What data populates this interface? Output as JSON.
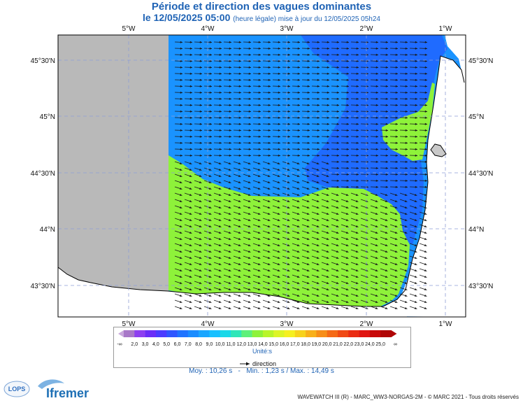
{
  "title": {
    "line1": "Période et direction des vagues dominantes",
    "date": "le 12/05/2025 05:00",
    "updated": "(heure légale) mise à jour du 12/05/2025 05h24"
  },
  "map": {
    "lon_ticks": [
      "5°W",
      "4°W",
      "3°W",
      "2°W",
      "1°W"
    ],
    "lat_ticks": [
      "45°30'N",
      "45°N",
      "44°30'N",
      "44°N",
      "43°30'N"
    ],
    "colors": {
      "land": "#ffffff",
      "mask": "#b9b9b9",
      "blue_dark": "#1f6bff",
      "blue": "#1a93ff",
      "green": "#8ef23a",
      "grid": "#8f9fd6"
    }
  },
  "legend": {
    "labels": [
      "2,0",
      "3,0",
      "4,0",
      "5,0",
      "6,0",
      "7,0",
      "8,0",
      "9,0",
      "10,0",
      "11,0",
      "12,0",
      "13,0",
      "14,0",
      "15,0",
      "16,0",
      "17,0",
      "18,0",
      "19,0",
      "20,0",
      "21,0",
      "22,0",
      "23,0",
      "24,0",
      "25,0"
    ],
    "left_inf": "-∞",
    "right_inf": "∞",
    "unit": "Unité:s",
    "direction_label": "direction",
    "colors": [
      "#a878c8",
      "#8d3ff0",
      "#6b2df7",
      "#4b3bff",
      "#2f56ff",
      "#1f73ff",
      "#1a8cff",
      "#1aa6ff",
      "#18c0ff",
      "#1ad8e8",
      "#2fe6b8",
      "#5ef07a",
      "#8ef23a",
      "#b8f52a",
      "#dcf526",
      "#f5f020",
      "#f7d21c",
      "#f8b01a",
      "#f78e18",
      "#f56a16",
      "#f04a14",
      "#ea2c12",
      "#e01410",
      "#c80808",
      "#b00606"
    ]
  },
  "stats": {
    "moy": "Moy. : 10,26 s",
    "sep": "-",
    "min": "Min. : 1,23 s / Max. : 14,49 s"
  },
  "footer": "WAVEWATCH III (R) - MARC_WW3-NORGAS-2M - © MARC 2021 - Tous droits réservés",
  "logos": {
    "lops": "LOPS",
    "ifremer": "Ifremer"
  }
}
